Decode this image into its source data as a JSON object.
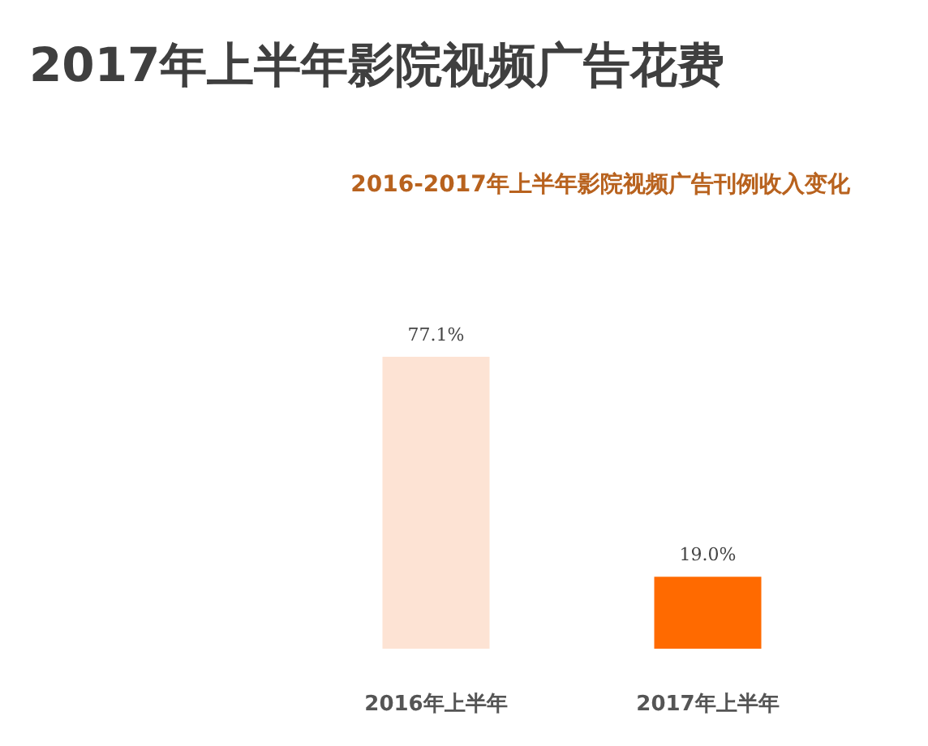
{
  "chart_data": {
    "type": "bar",
    "title": "2017年上半年影院视频广告花费",
    "subtitle": "2016-2017年上半年影院视频广告刊例收入变化",
    "categories": [
      "2016年上半年",
      "2017年上半年"
    ],
    "values": [
      77.1,
      19.0
    ],
    "colors": [
      "#fde3d4",
      "#ff6a00"
    ],
    "value_labels": [
      "77.1%",
      "19.0%"
    ]
  }
}
